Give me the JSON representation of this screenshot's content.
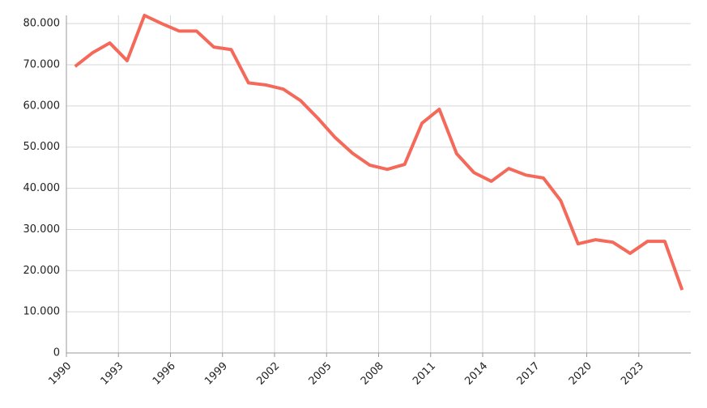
{
  "chart_data": {
    "type": "line",
    "categories": [
      "1990",
      "1991",
      "1992",
      "1993",
      "1994",
      "1995",
      "1996",
      "1997",
      "1998",
      "1999",
      "2000",
      "2001",
      "2002",
      "2003",
      "2004",
      "2005",
      "2006",
      "2007",
      "2008",
      "2009",
      "2010",
      "2011",
      "2012",
      "2013",
      "2014",
      "2015",
      "2016",
      "2017",
      "2018",
      "2019",
      "2020",
      "2021",
      "2022",
      "2023",
      "2024",
      "2025"
    ],
    "values": [
      69600,
      72900,
      75300,
      71000,
      82000,
      80000,
      78200,
      78200,
      74300,
      73700,
      65600,
      65100,
      64100,
      61300,
      57000,
      52300,
      48500,
      45600,
      44600,
      45800,
      55800,
      59200,
      48400,
      43800,
      41700,
      44800,
      43200,
      42500,
      37000,
      26500,
      27500,
      26900,
      24200,
      27100,
      27100,
      15300
    ],
    "color": "#f4695a",
    "ylim": [
      0,
      82000
    ],
    "yticks": [
      0,
      {
        "value": 10000,
        "label": "10.000"
      },
      {
        "value": 20000,
        "label": "20.000"
      },
      {
        "value": 30000,
        "label": "30.000"
      },
      {
        "value": 40000,
        "label": "40.000"
      },
      {
        "value": 50000,
        "label": "50.000"
      },
      {
        "value": 60000,
        "label": "60.000"
      },
      {
        "value": 70000,
        "label": "70.000"
      },
      {
        "value": 80000,
        "label": "80.000"
      }
    ],
    "grid": true
  }
}
